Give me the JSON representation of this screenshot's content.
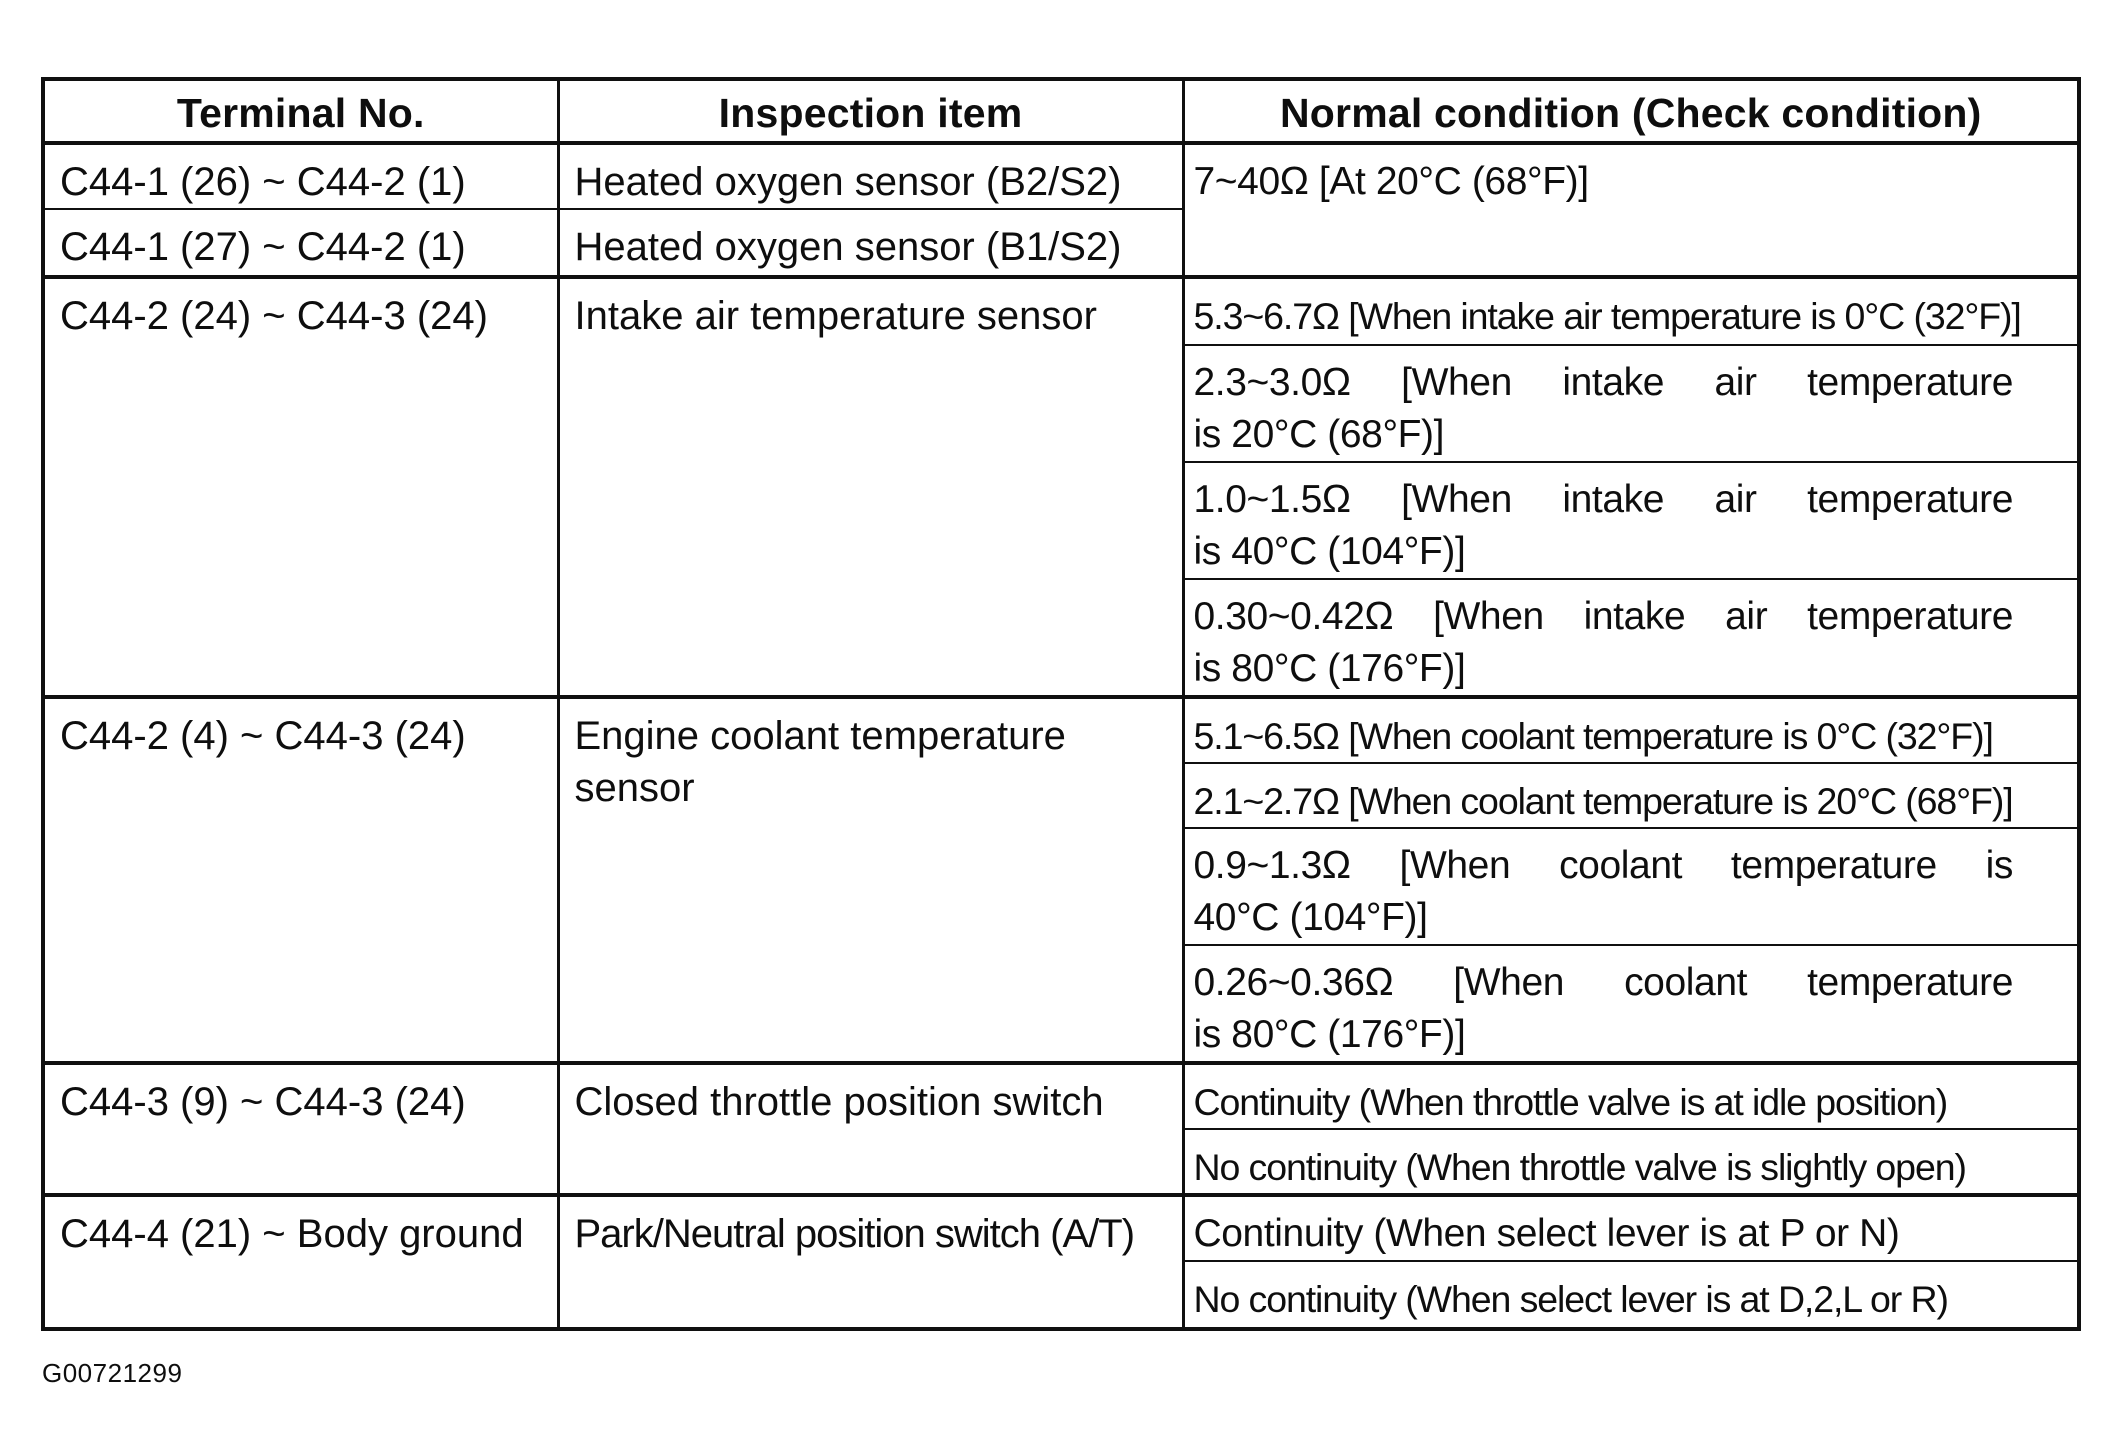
{
  "table": {
    "headers": {
      "terminal": "Terminal No.",
      "item": "Inspection item",
      "condition": "Normal condition (Check condition)"
    },
    "oxygen": {
      "row1": {
        "terminal": "C44-1 (26) ~ C44-2 (1)",
        "item": "Heated oxygen sensor (B2/S2)"
      },
      "row2": {
        "terminal": "C44-1 (27) ~ C44-2 (1)",
        "item": "Heated oxygen sensor (B1/S2)"
      },
      "condition": "7~40Ω [At 20°C (68°F)]"
    },
    "intake": {
      "terminal": "C44-2 (24) ~ C44-3 (24)",
      "item": "Intake air temperature sensor",
      "conditions": [
        {
          "l1": "5.3~6.7Ω [When intake air temperature is 0°C (32°F)]",
          "l2": ""
        },
        {
          "l1": "2.3~3.0Ω [When intake air temperature",
          "l2": "is 20°C (68°F)]"
        },
        {
          "l1": "1.0~1.5Ω [When intake air temperature",
          "l2": "is 40°C (104°F)]"
        },
        {
          "l1": "0.30~0.42Ω [When intake air temperature",
          "l2": "is 80°C (176°F)]"
        }
      ]
    },
    "coolant": {
      "terminal": "C44-2 (4) ~ C44-3 (24)",
      "item": "Engine coolant temperature sensor",
      "conditions": [
        {
          "l1": "5.1~6.5Ω [When coolant temperature is 0°C (32°F)]",
          "l2": ""
        },
        {
          "l1": "2.1~2.7Ω [When coolant temperature is 20°C (68°F)]",
          "l2": ""
        },
        {
          "l1": "0.9~1.3Ω [When coolant temperature is",
          "l2": "40°C (104°F)]"
        },
        {
          "l1": "0.26~0.36Ω [When coolant temperature",
          "l2": "is 80°C (176°F)]"
        }
      ]
    },
    "throttle": {
      "terminal": "C44-3 (9) ~ C44-3 (24)",
      "item": "Closed throttle position switch",
      "conditions": [
        {
          "l1": "Continuity (When throttle valve is at idle position)",
          "l2": ""
        },
        {
          "l1": "No continuity (When throttle valve is slightly open)",
          "l2": ""
        }
      ]
    },
    "park_neutral": {
      "terminal": "C44-4 (21) ~ Body ground",
      "item": "Park/Neutral position switch (A/T)",
      "conditions": [
        {
          "l1": "Continuity (When select lever is at P or N)",
          "l2": ""
        },
        {
          "l1": "No continuity (When select lever is at D,2,L or R)",
          "l2": ""
        }
      ]
    }
  },
  "document": {
    "figure_id": "G00721299"
  }
}
